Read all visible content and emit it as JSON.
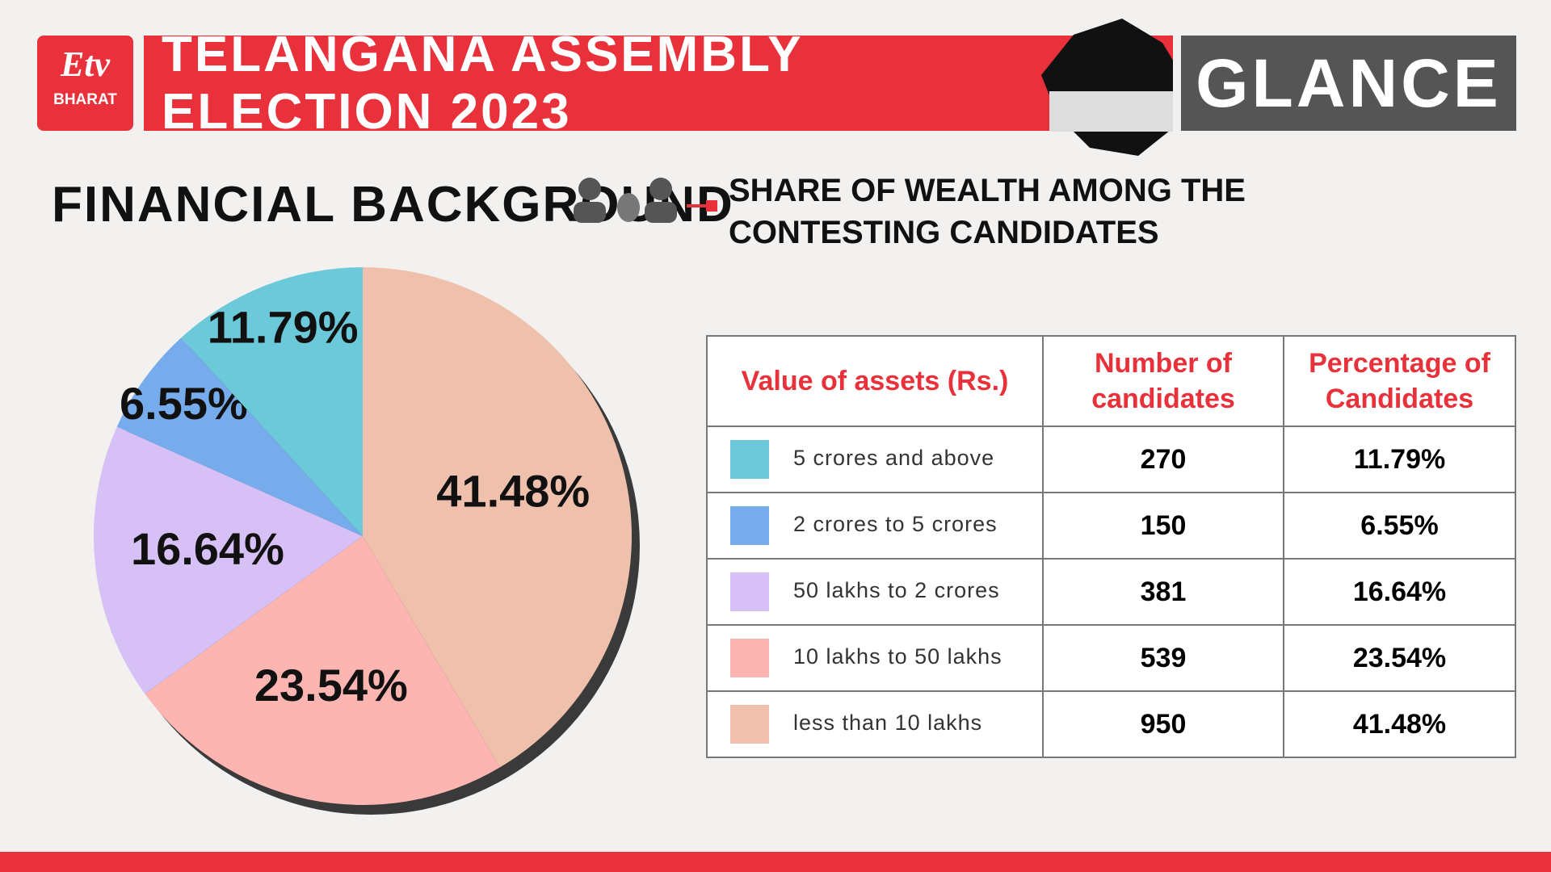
{
  "header": {
    "logo_text": "BHARAT",
    "title": "TELANGANA ASSEMBLY ELECTION 2023",
    "tag": "GLANCE"
  },
  "chart_data": {
    "type": "pie",
    "title": "FINANCIAL BACKGROUND",
    "subtitle": [
      "SHARE OF WEALTH AMONG THE",
      "CONTESTING CANDIDATES"
    ],
    "categories": [
      "5 crores and above",
      "2 crores to 5 crores",
      "50 lakhs to 2 crores",
      "10 lakhs to 50 lakhs",
      "less than 10 lakhs"
    ],
    "values": [
      11.79,
      6.55,
      16.64,
      23.54,
      41.48
    ],
    "value_labels": [
      "11.79%",
      "6.55%",
      "16.64%",
      "23.54%",
      "41.48%"
    ],
    "colors": [
      "#6cc9da",
      "#77acec",
      "#d6c0f5",
      "#fdb5b2",
      "#efc1ac"
    ]
  },
  "table": {
    "columns": [
      "Value of assets (Rs.)",
      "Number of candidates",
      "Percentage of Candidates"
    ],
    "counts": [
      270,
      150,
      381,
      539,
      950
    ]
  }
}
